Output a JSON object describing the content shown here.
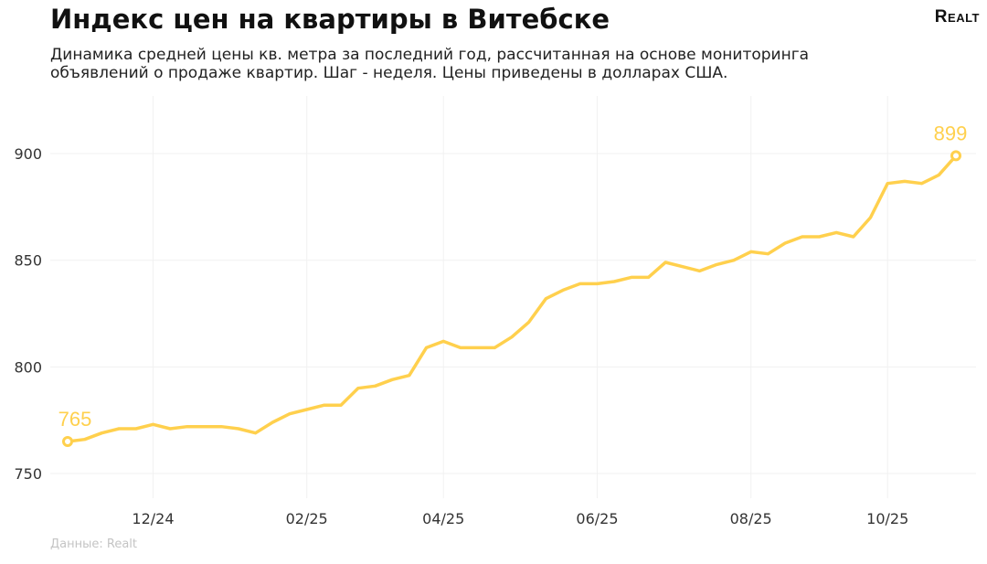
{
  "header": {
    "title": "Индекс цен на квартиры в Витебске",
    "subtitle_line1": "Динамика средней цены кв. метра за последний год, рассчитанная на основе мониторинга",
    "subtitle_line2": "объявлений о продаже квартир. Шаг - неделя. Цены приведены в долларах США.",
    "logo": "Realt"
  },
  "footer": {
    "source": "Данные: Realt"
  },
  "colors": {
    "line": "#FFD04D",
    "grid": "#f1f1f1",
    "background": "#ffffff"
  },
  "chart_data": {
    "type": "line",
    "title": "Индекс цен на квартиры в Витебске",
    "xlabel": "",
    "ylabel": "",
    "ylim": [
      740,
      925
    ],
    "y_ticks": [
      750,
      800,
      850,
      900
    ],
    "x_ticks": [
      {
        "label": "12/24",
        "index": 5
      },
      {
        "label": "02/25",
        "index": 14
      },
      {
        "label": "04/25",
        "index": 22
      },
      {
        "label": "06/25",
        "index": 31
      },
      {
        "label": "08/25",
        "index": 40
      },
      {
        "label": "10/25",
        "index": 48
      }
    ],
    "grid": true,
    "legend": "none",
    "series": [
      {
        "values": [
          765,
          766,
          769,
          771,
          771,
          773,
          771,
          772,
          772,
          772,
          771,
          769,
          774,
          778,
          780,
          782,
          782,
          790,
          791,
          794,
          796,
          809,
          812,
          809,
          809,
          809,
          814,
          821,
          832,
          836,
          839,
          839,
          840,
          842,
          842,
          849,
          847,
          845,
          848,
          850,
          854,
          853,
          858,
          861,
          861,
          863,
          861,
          870,
          886,
          887,
          886,
          890,
          899
        ]
      }
    ],
    "data_labels": [
      {
        "index": 0,
        "text": "765"
      },
      {
        "index": 52,
        "text": "899"
      }
    ]
  }
}
